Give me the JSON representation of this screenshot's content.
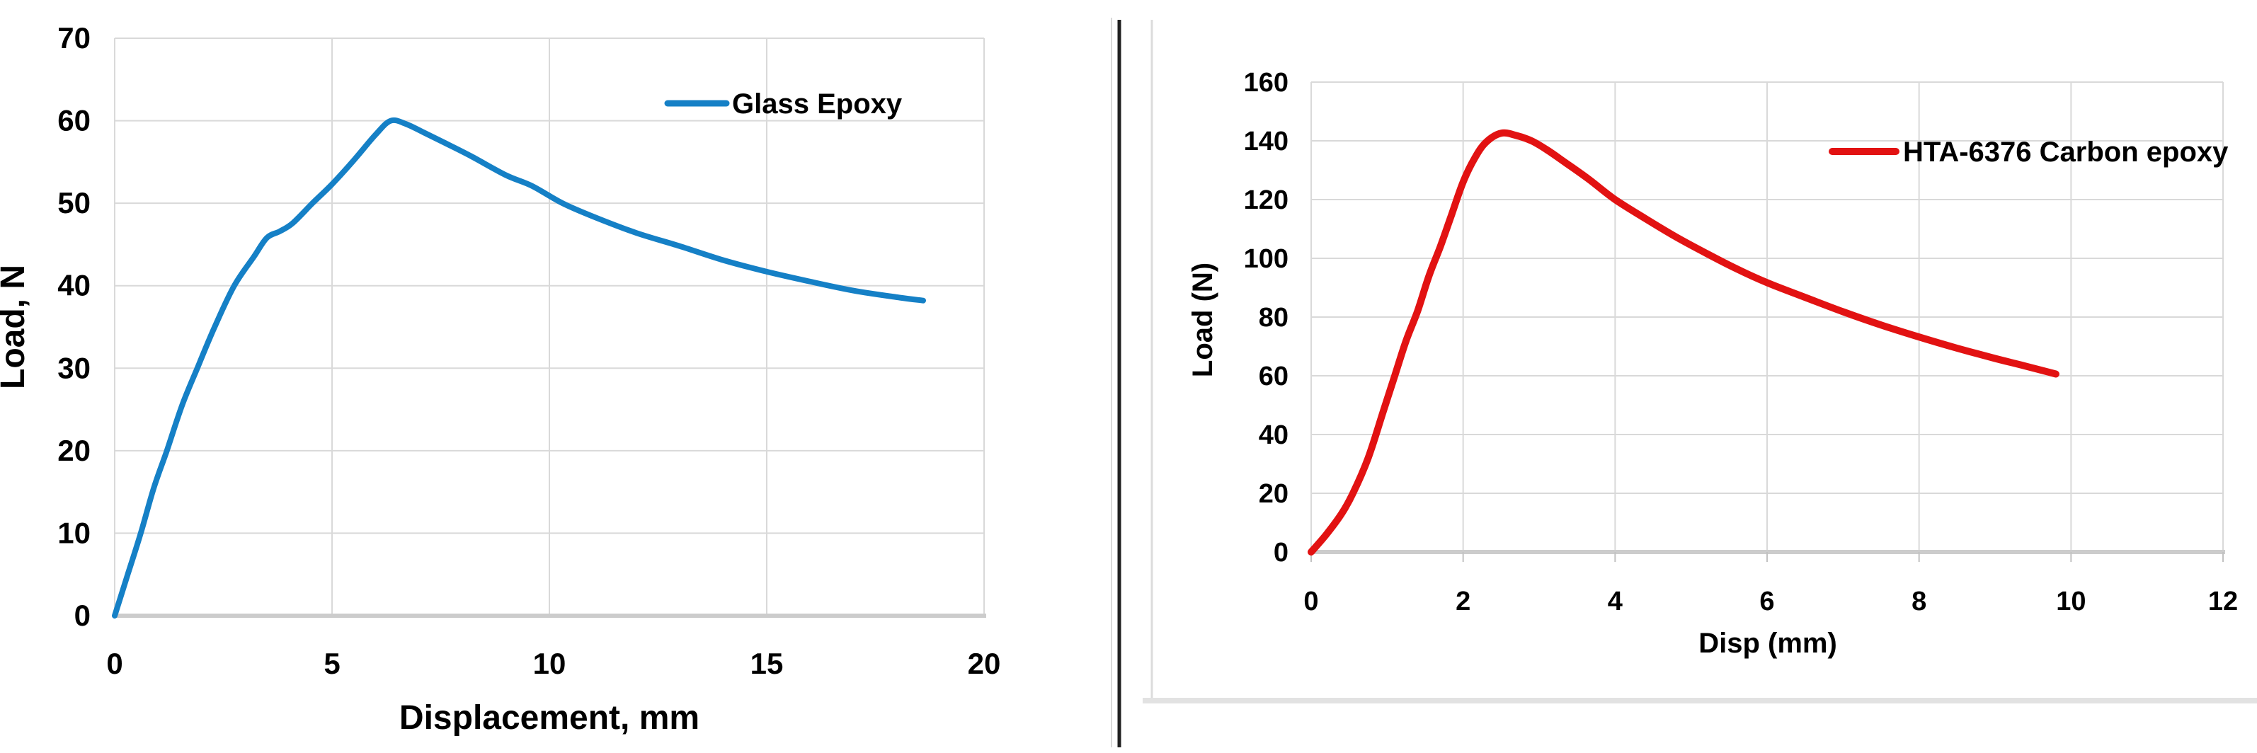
{
  "page": {
    "background": "#ffffff"
  },
  "style": {
    "grid_color": "#d9d9d9",
    "axis_color": "#cccccc",
    "tick_stub_color": "#c2c2c2",
    "text_color": "#000000",
    "divider_color": "#202020",
    "left_edge_line_color": "#d9d9d9",
    "panel_border_color": "#dcdcdc",
    "panel_bottom_color": "#e2e2e2",
    "glass_epoxy_blue": "#1580c6",
    "carbon_epoxy_red": "#e21212"
  },
  "chart_data": [
    {
      "type": "line",
      "title": "",
      "xlabel": "Displacement, mm",
      "ylabel": "Load, N",
      "xlim": [
        0,
        20
      ],
      "ylim": [
        0,
        70
      ],
      "xticks": [
        0,
        5,
        10,
        15,
        20
      ],
      "yticks": [
        0,
        10,
        20,
        30,
        40,
        50,
        60,
        70
      ],
      "grid": true,
      "legend_position": "inside-top-right",
      "series": [
        {
          "name": "Glass Epoxy",
          "color": "#1580c6",
          "points": [
            [
              0,
              0
            ],
            [
              0.3,
              5
            ],
            [
              0.6,
              10
            ],
            [
              0.9,
              15.5
            ],
            [
              1.2,
              20
            ],
            [
              1.55,
              25.5
            ],
            [
              1.9,
              30
            ],
            [
              2.3,
              35
            ],
            [
              2.75,
              40
            ],
            [
              3.2,
              43.5
            ],
            [
              3.5,
              45.8
            ],
            [
              3.8,
              46.6
            ],
            [
              4.1,
              47.6
            ],
            [
              4.55,
              50
            ],
            [
              5.0,
              52.3
            ],
            [
              5.5,
              55.2
            ],
            [
              6.0,
              58.3
            ],
            [
              6.35,
              60
            ],
            [
              6.7,
              59.6
            ],
            [
              7.1,
              58.6
            ],
            [
              7.6,
              57.3
            ],
            [
              8.2,
              55.7
            ],
            [
              9.0,
              53.4
            ],
            [
              9.6,
              52.1
            ],
            [
              10.3,
              50
            ],
            [
              11,
              48.4
            ],
            [
              12,
              46.4
            ],
            [
              13,
              44.8
            ],
            [
              14,
              43.1
            ],
            [
              15,
              41.7
            ],
            [
              16,
              40.5
            ],
            [
              17,
              39.4
            ],
            [
              18,
              38.6
            ],
            [
              18.6,
              38.2
            ]
          ]
        }
      ]
    },
    {
      "type": "line",
      "title": "",
      "xlabel": "Disp (mm)",
      "ylabel": "Load (N)",
      "xlim": [
        0,
        12
      ],
      "ylim": [
        0,
        160
      ],
      "xticks": [
        0,
        2,
        4,
        6,
        8,
        10,
        12
      ],
      "yticks": [
        0,
        20,
        40,
        60,
        80,
        100,
        120,
        140,
        160
      ],
      "grid": true,
      "legend_position": "inside-top-right",
      "series": [
        {
          "name": "HTA-6376 Carbon epoxy",
          "color": "#e21212",
          "points": [
            [
              0,
              0
            ],
            [
              0.2,
              6
            ],
            [
              0.4,
              13
            ],
            [
              0.55,
              20
            ],
            [
              0.75,
              32
            ],
            [
              0.95,
              48
            ],
            [
              1.1,
              60
            ],
            [
              1.25,
              72
            ],
            [
              1.4,
              82
            ],
            [
              1.55,
              94
            ],
            [
              1.7,
              104
            ],
            [
              1.85,
              115
            ],
            [
              2.0,
              126
            ],
            [
              2.15,
              134
            ],
            [
              2.3,
              139.5
            ],
            [
              2.5,
              142.6
            ],
            [
              2.7,
              141.8
            ],
            [
              2.9,
              140
            ],
            [
              3.1,
              137
            ],
            [
              3.35,
              132.5
            ],
            [
              3.65,
              127
            ],
            [
              4.0,
              120
            ],
            [
              4.4,
              113.5
            ],
            [
              4.8,
              107.3
            ],
            [
              5.2,
              101.7
            ],
            [
              5.6,
              96.4
            ],
            [
              6.0,
              91.7
            ],
            [
              6.5,
              86.7
            ],
            [
              7.0,
              81.8
            ],
            [
              7.5,
              77.3
            ],
            [
              8.0,
              73.2
            ],
            [
              8.5,
              69.4
            ],
            [
              9.0,
              65.9
            ],
            [
              9.4,
              63.3
            ],
            [
              9.8,
              60.6
            ]
          ]
        }
      ]
    }
  ]
}
